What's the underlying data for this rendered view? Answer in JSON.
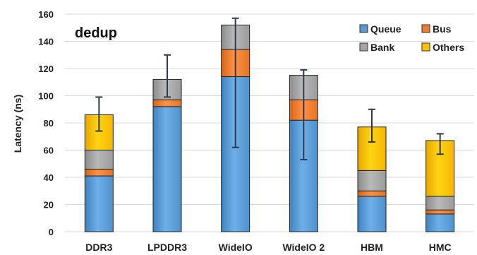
{
  "chart_data": {
    "type": "bar",
    "stacked": true,
    "title": "dedup",
    "xlabel": "",
    "ylabel": "Latency (ns)",
    "ylim": [
      0,
      160
    ],
    "yticks": [
      0,
      20,
      40,
      60,
      80,
      100,
      120,
      140,
      160
    ],
    "grid": true,
    "legend_position": "top-right",
    "categories": [
      "DDR3",
      "LPDDR3",
      "WideIO",
      "WideIO 2",
      "HBM",
      "HMC"
    ],
    "series": [
      {
        "name": "Queue",
        "color": "#5b9bd5",
        "values": [
          41,
          92,
          114,
          82,
          26,
          13
        ]
      },
      {
        "name": "Bus",
        "color": "#ed7d31",
        "values": [
          5,
          5,
          20,
          15,
          4,
          3
        ]
      },
      {
        "name": "Bank",
        "color": "#a5a5a5",
        "values": [
          14,
          15,
          18,
          18,
          15,
          10
        ]
      },
      {
        "name": "Others",
        "color": "#ffc000",
        "values": [
          26,
          0,
          0,
          0,
          32,
          41
        ]
      }
    ],
    "error_bars": [
      {
        "low": 74,
        "high": 99
      },
      {
        "low": 99,
        "high": 130
      },
      {
        "low": 62,
        "high": 157
      },
      {
        "low": 53,
        "high": 119
      },
      {
        "low": 66,
        "high": 90
      },
      {
        "low": 57,
        "high": 72
      }
    ]
  }
}
